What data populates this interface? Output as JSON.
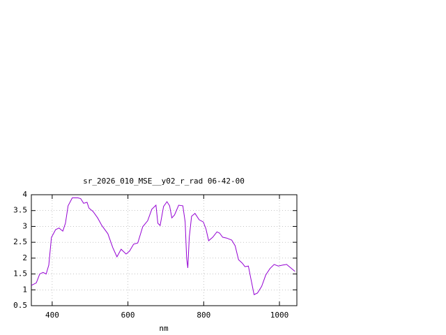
{
  "chart_data": {
    "type": "line",
    "title": "sr_2026_010_MSE__y02_r_rad 06-42-00",
    "x_label": "nm",
    "x": [
      345,
      358,
      367,
      376,
      384,
      391,
      398,
      409,
      418,
      428,
      435,
      442,
      453,
      468,
      475,
      483,
      492,
      497,
      508,
      520,
      531,
      547,
      560,
      571,
      582,
      595,
      604,
      615,
      626,
      639,
      652,
      663,
      674,
      679,
      685,
      694,
      703,
      710,
      716,
      723,
      734,
      745,
      751,
      755,
      758,
      762,
      768,
      777,
      788,
      799,
      806,
      813,
      824,
      835,
      842,
      850,
      861,
      874,
      883,
      892,
      902,
      909,
      918,
      925,
      933,
      942,
      953,
      964,
      975,
      986,
      997,
      1008,
      1019,
      1030,
      1041
    ],
    "series": [
      {
        "name": "sr_2026_010_MSE__y02_r_rad",
        "color": "#9400d3",
        "values": [
          1.14,
          1.22,
          1.5,
          1.55,
          1.5,
          1.78,
          2.65,
          2.9,
          2.95,
          2.85,
          3.1,
          3.65,
          3.9,
          3.9,
          3.88,
          3.73,
          3.76,
          3.58,
          3.47,
          3.27,
          3.03,
          2.77,
          2.33,
          2.04,
          2.28,
          2.13,
          2.22,
          2.44,
          2.48,
          2.99,
          3.18,
          3.54,
          3.67,
          3.1,
          3.03,
          3.63,
          3.78,
          3.65,
          3.27,
          3.36,
          3.67,
          3.65,
          3.14,
          2.0,
          1.69,
          2.66,
          3.32,
          3.41,
          3.21,
          3.14,
          2.92,
          2.55,
          2.66,
          2.83,
          2.79,
          2.66,
          2.63,
          2.57,
          2.39,
          1.95,
          1.84,
          1.73,
          1.75,
          1.33,
          0.85,
          0.9,
          1.11,
          1.47,
          1.67,
          1.8,
          1.75,
          1.78,
          1.8,
          1.69,
          1.58
        ]
      }
    ],
    "xlim": [
      345,
      1046
    ],
    "xticks": [
      400,
      600,
      800,
      1000
    ],
    "ylim": [
      0.5,
      4
    ],
    "yticks": [
      0.5,
      1,
      {
        "value": 1.5,
        "label": "1.5"
      },
      2,
      {
        "value": 2.5,
        "label": "2.5"
      },
      3,
      {
        "value": 3.5,
        "label": "3.5"
      },
      4
    ],
    "grid": true
  }
}
